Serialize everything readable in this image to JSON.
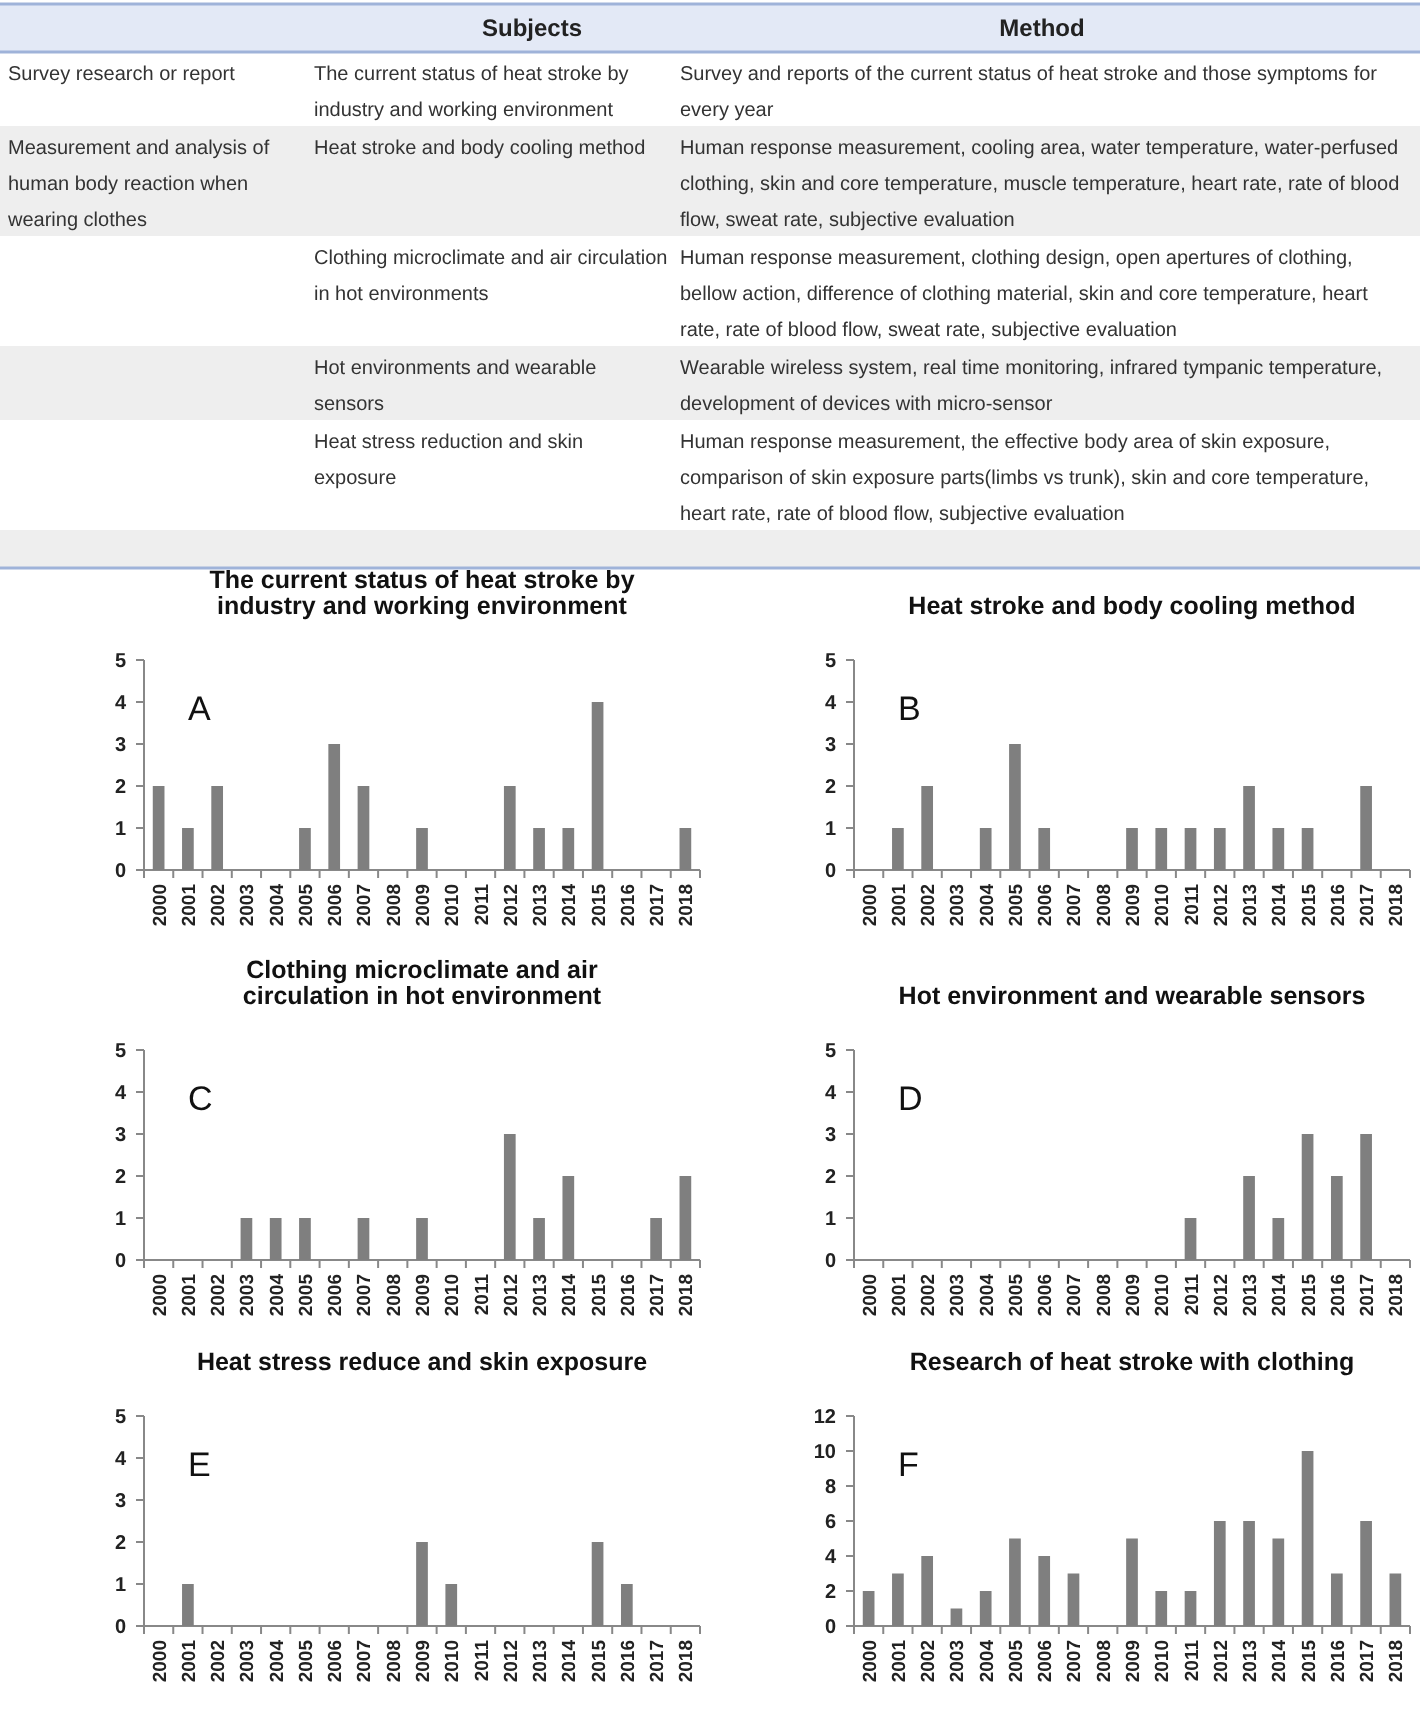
{
  "chart_data": [
    {
      "type": "other",
      "categories": [
        "Subjects",
        "Method"
      ],
      "y_categories": [
        "Survey research or report",
        "Measurement and analysis of human body reaction when wearing clothes",
        null,
        null,
        null,
        null
      ],
      "annotations": [
        "The current status of heat stroke by industry and working environment",
        "Survey and reports of the current status of heat stroke and those symptoms for every year",
        "Heat stroke and body cooling method",
        "Human response measurement, cooling area, water temperature, water-perfused clothing, skin and core temperature, muscle temperature, heart rate, rate of blood flow, sweat rate, subjective evaluation",
        "Clothing microclimate and air circulation in hot environments",
        "Human response measurement, clothing design, open apertures of clothing, bellow action, difference of clothing material, skin and core temperature, heart rate, rate of blood flow, sweat rate, subjective evaluation",
        "Hot environments and wearable sensors",
        "Wearable wireless system, real time monitoring, infrared tympanic temperature, development of devices with micro-sensor",
        "Heat stress reduction and skin exposure",
        "Human response measurement, the effective body area of skin exposure, comparison of skin exposure parts(limbs vs trunk), skin and core temperature, heart rate, rate of blood flow, subjective evaluation"
      ]
    },
    {
      "type": "bar",
      "title": "The current status of heat stroke by industry and working environment",
      "annotations": [
        "A"
      ],
      "categories": [
        "2000",
        "2001",
        "2002",
        "2003",
        "2004",
        "2005",
        "2006",
        "2007",
        "2008",
        "2009",
        "2010",
        "2011",
        "2012",
        "2013",
        "2014",
        "2015",
        "2016",
        "2017",
        "2018"
      ],
      "values": [
        2,
        1,
        2,
        0,
        0,
        1,
        3,
        2,
        0,
        1,
        0,
        0,
        2,
        1,
        1,
        4,
        0,
        0,
        1
      ],
      "color": "#7f7f7f",
      "ylim": [
        0,
        5
      ],
      "yticks": [
        0,
        1,
        2,
        3,
        4,
        5
      ]
    },
    {
      "type": "bar",
      "title": "Heat stroke and body cooling method",
      "annotations": [
        "B"
      ],
      "categories": [
        "2000",
        "2001",
        "2002",
        "2003",
        "2004",
        "2005",
        "2006",
        "2007",
        "2008",
        "2009",
        "2010",
        "2011",
        "2012",
        "2013",
        "2014",
        "2015",
        "2016",
        "2017",
        "2018"
      ],
      "values": [
        0,
        1,
        2,
        0,
        1,
        3,
        1,
        0,
        0,
        1,
        1,
        1,
        1,
        2,
        1,
        1,
        0,
        2,
        0
      ],
      "color": "#7f7f7f",
      "ylim": [
        0,
        5
      ],
      "yticks": [
        0,
        1,
        2,
        3,
        4,
        5
      ]
    },
    {
      "type": "bar",
      "title": "Clothing microclimate and air circulation in hot environment",
      "annotations": [
        "C"
      ],
      "categories": [
        "2000",
        "2001",
        "2002",
        "2003",
        "2004",
        "2005",
        "2006",
        "2007",
        "2008",
        "2009",
        "2010",
        "2011",
        "2012",
        "2013",
        "2014",
        "2015",
        "2016",
        "2017",
        "2018"
      ],
      "values": [
        0,
        0,
        0,
        1,
        1,
        1,
        0,
        1,
        0,
        1,
        0,
        0,
        3,
        1,
        2,
        0,
        0,
        1,
        2
      ],
      "color": "#7f7f7f",
      "ylim": [
        0,
        5
      ],
      "yticks": [
        0,
        1,
        2,
        3,
        4,
        5
      ]
    },
    {
      "type": "bar",
      "title": "Hot environment and wearable sensors",
      "annotations": [
        "D"
      ],
      "categories": [
        "2000",
        "2001",
        "2002",
        "2003",
        "2004",
        "2005",
        "2006",
        "2007",
        "2008",
        "2009",
        "2010",
        "2011",
        "2012",
        "2013",
        "2014",
        "2015",
        "2016",
        "2017",
        "2018"
      ],
      "values": [
        0,
        0,
        0,
        0,
        0,
        0,
        0,
        0,
        0,
        0,
        0,
        1,
        0,
        2,
        1,
        3,
        2,
        3,
        0
      ],
      "color": "#7f7f7f",
      "ylim": [
        0,
        5
      ],
      "yticks": [
        0,
        1,
        2,
        3,
        4,
        5
      ]
    },
    {
      "type": "bar",
      "title": "Heat stress reduce and skin exposure",
      "annotations": [
        "E"
      ],
      "categories": [
        "2000",
        "2001",
        "2002",
        "2003",
        "2004",
        "2005",
        "2006",
        "2007",
        "2008",
        "2009",
        "2010",
        "2011",
        "2012",
        "2013",
        "2014",
        "2015",
        "2016",
        "2017",
        "2018"
      ],
      "values": [
        0,
        1,
        0,
        0,
        0,
        0,
        0,
        0,
        0,
        2,
        1,
        0,
        0,
        0,
        0,
        2,
        1,
        0,
        0
      ],
      "color": "#7f7f7f",
      "ylim": [
        0,
        5
      ],
      "yticks": [
        0,
        1,
        2,
        3,
        4,
        5
      ]
    },
    {
      "type": "bar",
      "title": "Research of heat stroke with clothing",
      "annotations": [
        "F"
      ],
      "categories": [
        "2000",
        "2001",
        "2002",
        "2003",
        "2004",
        "2005",
        "2006",
        "2007",
        "2008",
        "2009",
        "2010",
        "2011",
        "2012",
        "2013",
        "2014",
        "2015",
        "2016",
        "2017",
        "2018"
      ],
      "values": [
        2,
        3,
        4,
        1,
        2,
        5,
        4,
        3,
        0,
        5,
        2,
        2,
        6,
        6,
        5,
        10,
        3,
        6,
        3
      ],
      "color": "#7f7f7f",
      "ylim": [
        0,
        12
      ],
      "yticks": [
        0,
        2,
        4,
        6,
        8,
        10,
        12
      ]
    }
  ]
}
